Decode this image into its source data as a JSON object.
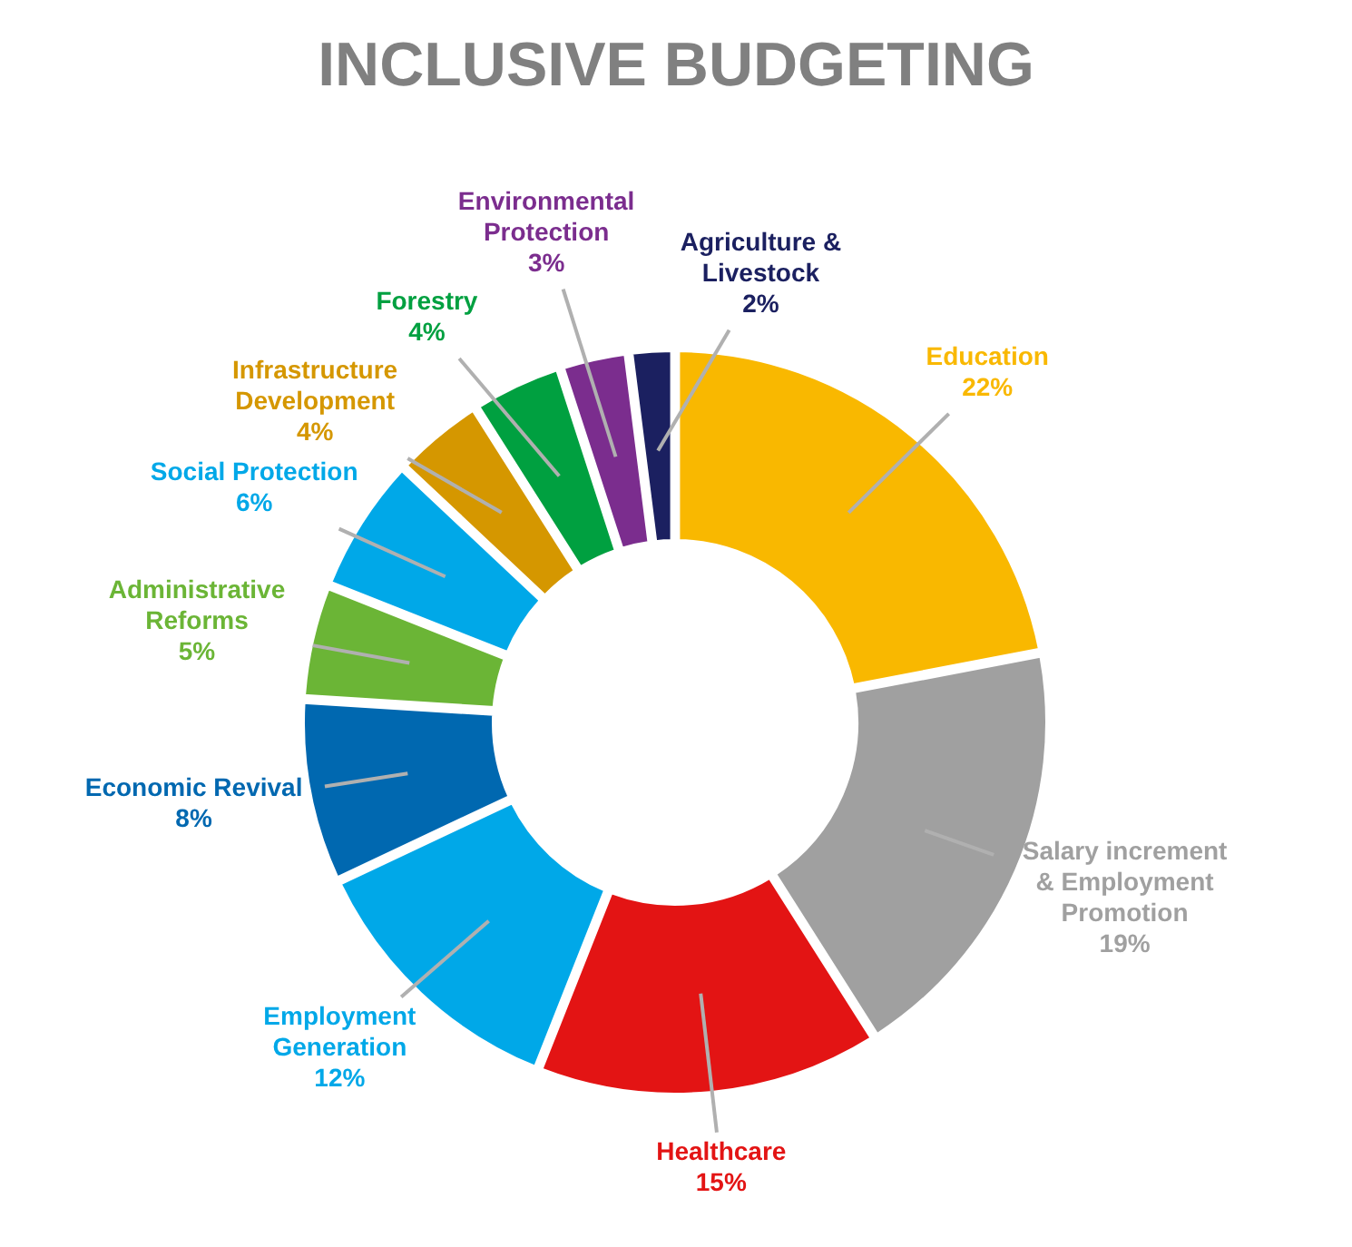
{
  "chart_data": {
    "type": "donut",
    "title": "INCLUSIVE BUDGETING",
    "categories": [
      "Education",
      "Salary increment & Employment Promotion",
      "Healthcare",
      "Employment Generation",
      "Economic Revival",
      "Administrative Reforms",
      "Social Protection",
      "Infrastructure Development",
      "Forestry",
      "Environmental Protection",
      "Agriculture & Livestock"
    ],
    "values": [
      22,
      19,
      15,
      12,
      8,
      5,
      6,
      4,
      4,
      3,
      2
    ],
    "value_labels": [
      "22%",
      "19%",
      "15%",
      "12%",
      "8%",
      "5%",
      "6%",
      "4%",
      "4%",
      "3%",
      "2%"
    ],
    "colors": [
      "#f9b800",
      "#a0a0a0",
      "#e31414",
      "#00a8e8",
      "#0068b0",
      "#6bb536",
      "#00a8e8",
      "#d59700",
      "#00a040",
      "#7b2d8e",
      "#1b2060"
    ],
    "data_labels": true,
    "legend": false
  }
}
